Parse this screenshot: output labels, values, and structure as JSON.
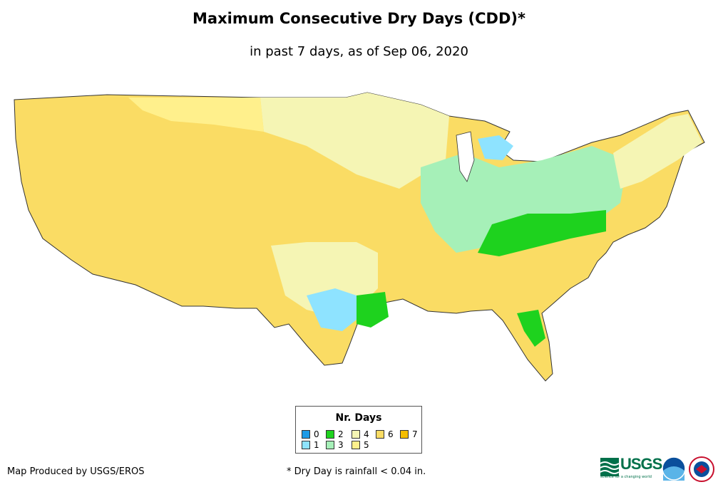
{
  "title": "Maximum Consecutive Dry Days (CDD)*",
  "subtitle": "in past 7 days, as of Sep 06, 2020",
  "legend": {
    "title": "Nr. Days",
    "items": [
      {
        "label": "0",
        "color": "#1e9be6"
      },
      {
        "label": "1",
        "color": "#8ee3ff"
      },
      {
        "label": "2",
        "color": "#1ed21e"
      },
      {
        "label": "3",
        "color": "#a6f0b8"
      },
      {
        "label": "4",
        "color": "#f5f5b4"
      },
      {
        "label": "5",
        "color": "#fff08c"
      },
      {
        "label": "6",
        "color": "#fadc64"
      },
      {
        "label": "7",
        "color": "#f5be00"
      }
    ]
  },
  "credit": "Map Produced by USGS/EROS",
  "footnote": "* Dry Day is rainfall < 0.04 in.",
  "logos": {
    "usgs": "USGS",
    "usgs_tagline": "science for a changing world",
    "noaa": "noaa-logo",
    "nws": "nws-logo"
  }
}
